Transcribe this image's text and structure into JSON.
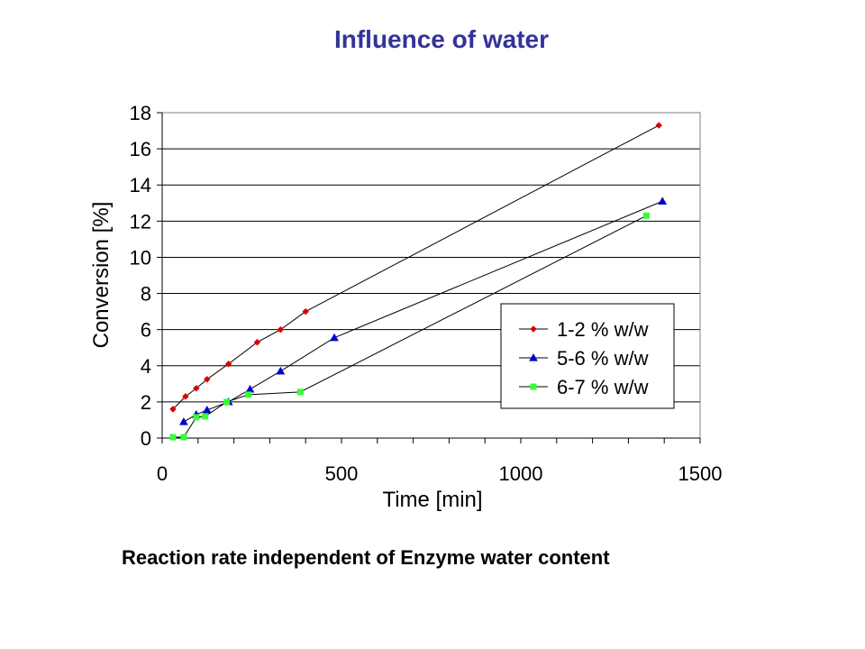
{
  "page": {
    "title": "Influence of water",
    "subtitle": "Reaction rate independent of  Enzyme water content"
  },
  "chart_data": {
    "type": "line",
    "title": "",
    "xlabel": "Time [min]",
    "ylabel": "Conversion [%]",
    "xlim": [
      0,
      1500
    ],
    "ylim": [
      0,
      18
    ],
    "xticks": [
      0,
      500,
      1000,
      1500
    ],
    "yticks": [
      0,
      2,
      4,
      6,
      8,
      10,
      12,
      14,
      16,
      18
    ],
    "grid": "horizontal",
    "legend_position": "right",
    "series": [
      {
        "name": "1-2 % w/w",
        "color": "#dd0000",
        "marker": "diamond",
        "points": [
          [
            30,
            1.6
          ],
          [
            65,
            2.3
          ],
          [
            95,
            2.75
          ],
          [
            125,
            3.25
          ],
          [
            185,
            4.1
          ],
          [
            265,
            5.3
          ],
          [
            330,
            6.0
          ],
          [
            400,
            7.0
          ],
          [
            1385,
            17.3
          ]
        ]
      },
      {
        "name": "5-6 % w/w",
        "color": "#0000cc",
        "marker": "triangle",
        "points": [
          [
            60,
            0.9
          ],
          [
            95,
            1.3
          ],
          [
            125,
            1.55
          ],
          [
            185,
            2.0
          ],
          [
            245,
            2.7
          ],
          [
            330,
            3.7
          ],
          [
            480,
            5.55
          ],
          [
            1395,
            13.1
          ]
        ]
      },
      {
        "name": "6-7 % w/w",
        "color": "#33ff33",
        "marker": "square",
        "points": [
          [
            30,
            0.05
          ],
          [
            60,
            0.05
          ],
          [
            95,
            1.15
          ],
          [
            120,
            1.2
          ],
          [
            180,
            2.0
          ],
          [
            240,
            2.4
          ],
          [
            385,
            2.55
          ],
          [
            1350,
            12.3
          ]
        ]
      }
    ]
  }
}
